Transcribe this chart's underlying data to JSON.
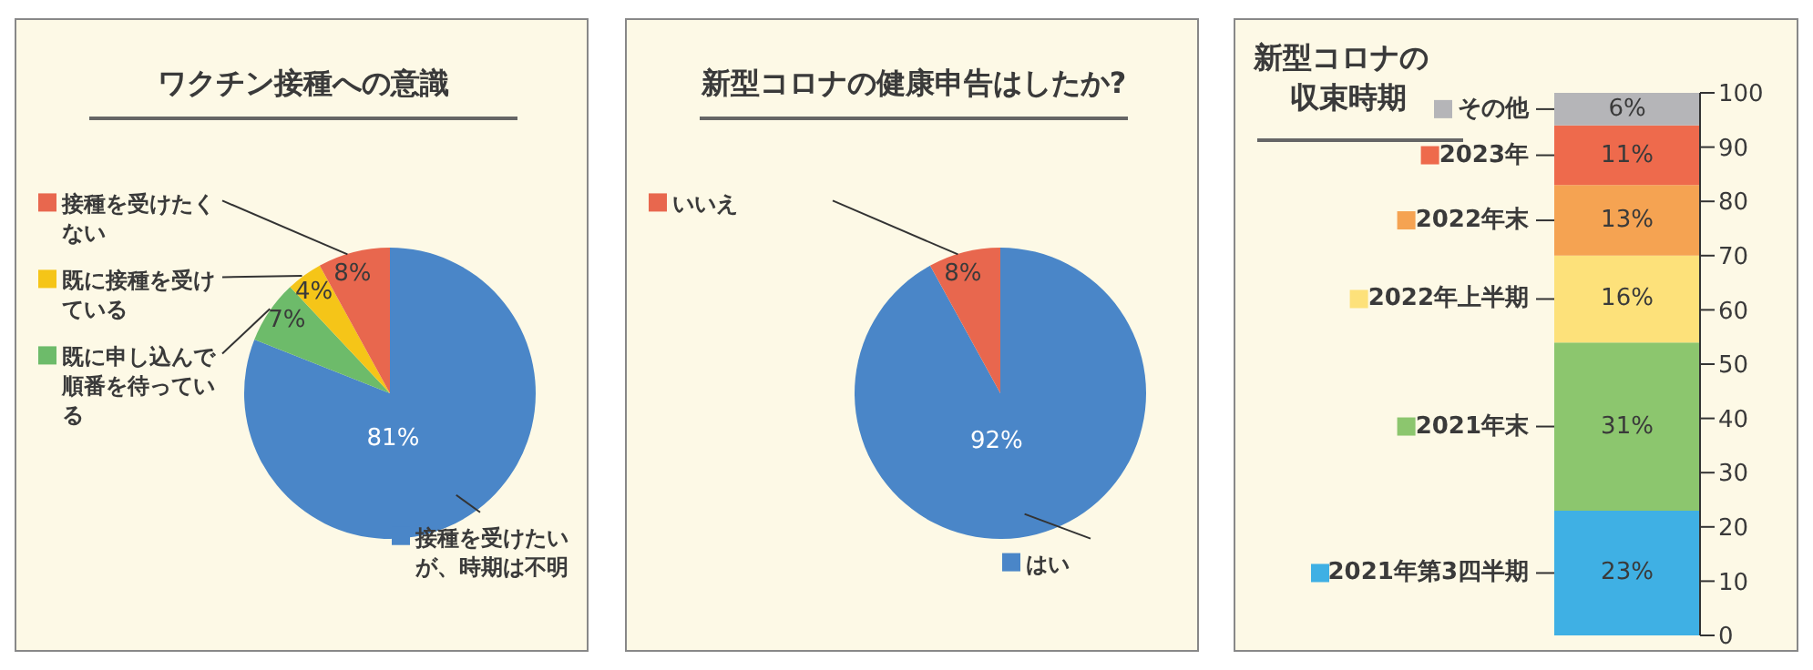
{
  "chart_data": [
    {
      "type": "pie",
      "legend": "left",
      "title": "ワクチン接種への意識",
      "categories": [
        "接種を受けたいが、時期は不明",
        "既に申し込んで順番を待っている",
        "既に接種を受けている",
        "接種を受けたくない"
      ],
      "values": [
        81,
        7,
        4,
        8
      ],
      "colors": [
        "#4a86c8",
        "#6dbb6a",
        "#f5c518",
        "#e8674e"
      ],
      "value_labels": [
        "81%",
        "7%",
        "4%",
        "8%"
      ]
    },
    {
      "type": "pie",
      "legend": "left",
      "title": "新型コロナの健康申告はしたか?",
      "categories": [
        "はい",
        "いいえ"
      ],
      "values": [
        92,
        8
      ],
      "colors": [
        "#4a86c8",
        "#e8674e"
      ],
      "value_labels": [
        "92%",
        "8%"
      ]
    },
    {
      "type": "bar",
      "stacked": true,
      "legend": "left",
      "title": "新型コロナの収束時期",
      "categories": [
        null
      ],
      "ylim": [
        0,
        100
      ],
      "yticks": [
        0,
        10,
        20,
        30,
        40,
        50,
        60,
        70,
        80,
        90,
        100
      ],
      "tick_labels": "y",
      "grid": false,
      "series": [
        {
          "name": "2021年第3四半期",
          "color": "#3fb0e4",
          "values": [
            23
          ],
          "value_labels": [
            "23%"
          ]
        },
        {
          "name": "2021年末",
          "color": "#8cc66e",
          "values": [
            31
          ],
          "value_labels": [
            "31%"
          ]
        },
        {
          "name": "2022年上半期",
          "color": "#fde17a",
          "values": [
            16
          ],
          "value_labels": [
            "16%"
          ]
        },
        {
          "name": "2022年末",
          "color": "#f5a352",
          "values": [
            13
          ],
          "value_labels": [
            "13%"
          ]
        },
        {
          "name": "2023年",
          "color": "#ee6a4c",
          "values": [
            11
          ],
          "value_labels": [
            "11%"
          ]
        },
        {
          "name": "その他",
          "color": "#b5b5b8",
          "values": [
            6
          ],
          "value_labels": [
            "6%"
          ]
        }
      ]
    }
  ]
}
